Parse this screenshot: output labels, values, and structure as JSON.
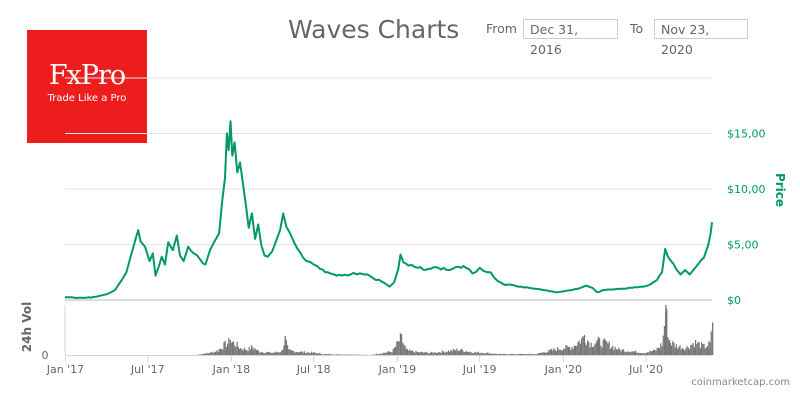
{
  "header": {
    "title": "Waves Charts",
    "from_label": "From",
    "from_value": "Dec 31, 2016",
    "to_label": "To",
    "to_value": "Nov 23, 2020"
  },
  "ad": {
    "brand": "FxPro",
    "tagline": "Trade Like a Pro",
    "color": "#ee1d1d"
  },
  "credit": "coinmarketcap.com",
  "chart_data": {
    "type": "line",
    "title": "Waves Charts",
    "xlabel": "",
    "ylabel": "Price",
    "y2label": "24h Vol",
    "colors": {
      "price": "#009966",
      "volume": "#767676",
      "grid": "#e6e6e6"
    },
    "xrange": [
      "2016-12-31",
      "2020-11-23"
    ],
    "ylim": [
      0,
      20
    ],
    "y_ticks": [
      {
        "value": 0,
        "label": "$0"
      },
      {
        "value": 5,
        "label": "$5,00"
      },
      {
        "value": 10,
        "label": "$10,00"
      },
      {
        "value": 15,
        "label": "$15,00"
      }
    ],
    "x_ticks": [
      {
        "date": "2017-01-01",
        "label": "Jan '17"
      },
      {
        "date": "2017-07-01",
        "label": "Jul '17"
      },
      {
        "date": "2018-01-01",
        "label": "Jan '18"
      },
      {
        "date": "2018-07-01",
        "label": "Jul '18"
      },
      {
        "date": "2019-01-01",
        "label": "Jan '19"
      },
      {
        "date": "2019-07-01",
        "label": "Jul '19"
      },
      {
        "date": "2020-01-01",
        "label": "Jan '20"
      },
      {
        "date": "2020-07-01",
        "label": "Jul '20"
      }
    ],
    "volume_tick_label": "0",
    "price_series": {
      "name": "Price",
      "points": [
        [
          "2016-12-31",
          0.25
        ],
        [
          "2017-01-20",
          0.22
        ],
        [
          "2017-02-15",
          0.2
        ],
        [
          "2017-03-10",
          0.3
        ],
        [
          "2017-03-31",
          0.5
        ],
        [
          "2017-04-20",
          0.9
        ],
        [
          "2017-05-05",
          1.8
        ],
        [
          "2017-05-15",
          2.5
        ],
        [
          "2017-05-25",
          4.0
        ],
        [
          "2017-06-05",
          5.6
        ],
        [
          "2017-06-10",
          6.3
        ],
        [
          "2017-06-15",
          5.3
        ],
        [
          "2017-06-25",
          4.8
        ],
        [
          "2017-07-05",
          3.5
        ],
        [
          "2017-07-12",
          4.2
        ],
        [
          "2017-07-18",
          2.2
        ],
        [
          "2017-07-25",
          3.0
        ],
        [
          "2017-08-01",
          3.9
        ],
        [
          "2017-08-08",
          3.2
        ],
        [
          "2017-08-15",
          5.2
        ],
        [
          "2017-08-25",
          4.5
        ],
        [
          "2017-09-03",
          5.8
        ],
        [
          "2017-09-10",
          4.0
        ],
        [
          "2017-09-18",
          3.5
        ],
        [
          "2017-09-28",
          4.8
        ],
        [
          "2017-10-10",
          4.2
        ],
        [
          "2017-10-25",
          3.6
        ],
        [
          "2017-11-05",
          3.2
        ],
        [
          "2017-11-15",
          4.5
        ],
        [
          "2017-11-25",
          5.3
        ],
        [
          "2017-12-05",
          6.0
        ],
        [
          "2017-12-12",
          9.0
        ],
        [
          "2017-12-18",
          11.0
        ],
        [
          "2017-12-22",
          15.0
        ],
        [
          "2017-12-26",
          13.5
        ],
        [
          "2017-12-30",
          16.1
        ],
        [
          "2018-01-03",
          13.0
        ],
        [
          "2018-01-08",
          14.2
        ],
        [
          "2018-01-14",
          11.5
        ],
        [
          "2018-01-20",
          12.4
        ],
        [
          "2018-01-28",
          10.0
        ],
        [
          "2018-02-03",
          8.2
        ],
        [
          "2018-02-08",
          6.5
        ],
        [
          "2018-02-15",
          7.8
        ],
        [
          "2018-02-22",
          5.5
        ],
        [
          "2018-03-01",
          6.8
        ],
        [
          "2018-03-08",
          4.9
        ],
        [
          "2018-03-15",
          4.0
        ],
        [
          "2018-03-22",
          3.9
        ],
        [
          "2018-04-01",
          4.4
        ],
        [
          "2018-04-10",
          5.4
        ],
        [
          "2018-04-18",
          6.3
        ],
        [
          "2018-04-25",
          7.8
        ],
        [
          "2018-05-02",
          6.6
        ],
        [
          "2018-05-10",
          6.0
        ],
        [
          "2018-05-20",
          5.1
        ],
        [
          "2018-06-01",
          4.3
        ],
        [
          "2018-06-15",
          3.5
        ],
        [
          "2018-07-01",
          3.2
        ],
        [
          "2018-07-15",
          2.8
        ],
        [
          "2018-08-01",
          2.5
        ],
        [
          "2018-08-15",
          2.3
        ],
        [
          "2018-09-01",
          2.2
        ],
        [
          "2018-09-20",
          2.3
        ],
        [
          "2018-10-10",
          2.4
        ],
        [
          "2018-11-01",
          2.2
        ],
        [
          "2018-11-15",
          1.8
        ],
        [
          "2018-12-05",
          1.5
        ],
        [
          "2018-12-15",
          1.2
        ],
        [
          "2018-12-25",
          1.6
        ],
        [
          "2019-01-03",
          2.8
        ],
        [
          "2019-01-08",
          4.1
        ],
        [
          "2019-01-14",
          3.4
        ],
        [
          "2019-01-25",
          3.1
        ],
        [
          "2019-02-15",
          2.9
        ],
        [
          "2019-03-10",
          2.8
        ],
        [
          "2019-04-01",
          2.9
        ],
        [
          "2019-04-25",
          2.7
        ],
        [
          "2019-05-15",
          3.0
        ],
        [
          "2019-06-01",
          2.9
        ],
        [
          "2019-06-15",
          2.4
        ],
        [
          "2019-07-01",
          2.9
        ],
        [
          "2019-07-10",
          2.6
        ],
        [
          "2019-07-25",
          2.5
        ],
        [
          "2019-08-10",
          1.7
        ],
        [
          "2019-09-01",
          1.4
        ],
        [
          "2019-10-01",
          1.2
        ],
        [
          "2019-11-01",
          1.0
        ],
        [
          "2019-12-01",
          0.8
        ],
        [
          "2019-12-20",
          0.7
        ],
        [
          "2020-01-10",
          0.85
        ],
        [
          "2020-02-01",
          1.0
        ],
        [
          "2020-02-20",
          1.3
        ],
        [
          "2020-03-05",
          1.1
        ],
        [
          "2020-03-15",
          0.7
        ],
        [
          "2020-04-01",
          0.9
        ],
        [
          "2020-05-01",
          1.0
        ],
        [
          "2020-06-01",
          1.1
        ],
        [
          "2020-06-25",
          1.2
        ],
        [
          "2020-07-10",
          1.4
        ],
        [
          "2020-07-25",
          1.8
        ],
        [
          "2020-08-05",
          2.5
        ],
        [
          "2020-08-12",
          4.6
        ],
        [
          "2020-08-18",
          3.9
        ],
        [
          "2020-08-25",
          3.5
        ],
        [
          "2020-09-05",
          2.8
        ],
        [
          "2020-09-15",
          2.3
        ],
        [
          "2020-09-25",
          2.7
        ],
        [
          "2020-10-05",
          2.3
        ],
        [
          "2020-10-15",
          2.8
        ],
        [
          "2020-10-25",
          3.3
        ],
        [
          "2020-11-05",
          3.8
        ],
        [
          "2020-11-15",
          5.0
        ],
        [
          "2020-11-20",
          6.0
        ],
        [
          "2020-11-23",
          7.0
        ]
      ]
    },
    "volume_series": {
      "name": "24h Vol",
      "unit": "relative (0-100, no scale shown)",
      "points": [
        [
          "2016-12-31",
          0
        ],
        [
          "2017-10-15",
          0
        ],
        [
          "2017-11-01",
          3
        ],
        [
          "2017-11-15",
          5
        ],
        [
          "2017-12-01",
          10
        ],
        [
          "2017-12-15",
          22
        ],
        [
          "2017-12-28",
          30
        ],
        [
          "2018-01-08",
          25
        ],
        [
          "2018-01-20",
          15
        ],
        [
          "2018-02-05",
          12
        ],
        [
          "2018-02-15",
          18
        ],
        [
          "2018-03-01",
          8
        ],
        [
          "2018-03-15",
          6
        ],
        [
          "2018-04-01",
          5
        ],
        [
          "2018-04-20",
          8
        ],
        [
          "2018-04-28",
          35
        ],
        [
          "2018-05-05",
          10
        ],
        [
          "2018-05-20",
          8
        ],
        [
          "2018-06-10",
          6
        ],
        [
          "2018-07-01",
          5
        ],
        [
          "2018-07-20",
          2
        ],
        [
          "2018-09-01",
          1
        ],
        [
          "2018-10-01",
          1
        ],
        [
          "2018-11-01",
          0
        ],
        [
          "2018-12-20",
          8
        ],
        [
          "2019-01-08",
          38
        ],
        [
          "2019-01-20",
          10
        ],
        [
          "2019-02-15",
          6
        ],
        [
          "2019-03-15",
          5
        ],
        [
          "2019-04-15",
          8
        ],
        [
          "2019-05-15",
          12
        ],
        [
          "2019-06-15",
          6
        ],
        [
          "2019-07-10",
          5
        ],
        [
          "2019-08-10",
          2
        ],
        [
          "2019-09-20",
          2
        ],
        [
          "2019-11-01",
          2
        ],
        [
          "2019-12-20",
          14
        ],
        [
          "2020-01-20",
          18
        ],
        [
          "2020-02-15",
          40
        ],
        [
          "2020-03-01",
          25
        ],
        [
          "2020-03-15",
          30
        ],
        [
          "2020-04-05",
          25
        ],
        [
          "2020-05-01",
          12
        ],
        [
          "2020-06-01",
          8
        ],
        [
          "2020-06-25",
          5
        ],
        [
          "2020-07-20",
          10
        ],
        [
          "2020-08-05",
          25
        ],
        [
          "2020-08-12",
          100
        ],
        [
          "2020-08-20",
          30
        ],
        [
          "2020-09-05",
          20
        ],
        [
          "2020-09-25",
          15
        ],
        [
          "2020-10-15",
          28
        ],
        [
          "2020-11-05",
          18
        ],
        [
          "2020-11-18",
          25
        ],
        [
          "2020-11-23",
          65
        ]
      ]
    }
  }
}
